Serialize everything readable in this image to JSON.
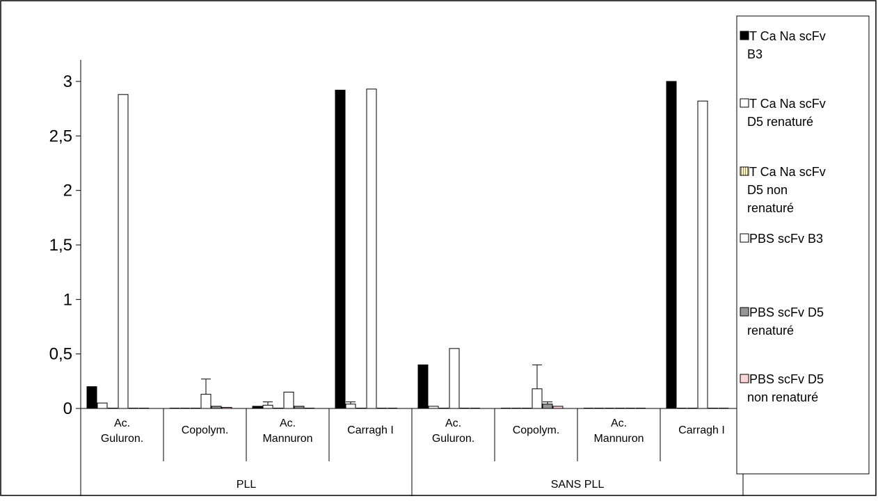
{
  "chart_data": {
    "type": "bar",
    "title": "",
    "xlabel": "",
    "ylabel": "",
    "ylim": [
      0,
      3
    ],
    "yticks": [
      "0",
      "0,5",
      "1",
      "1,5",
      "2",
      "2,5",
      "3"
    ],
    "ytick_values": [
      0,
      0.5,
      1,
      1.5,
      2,
      2.5,
      3
    ],
    "grid": false,
    "legend_position": "right",
    "groups": [
      {
        "label": "PLL",
        "categories": [
          [
            "Ac.",
            "Guluron."
          ],
          [
            "Copolym."
          ],
          [
            "Ac.",
            "Mannuron"
          ],
          [
            "Carragh I"
          ]
        ]
      },
      {
        "label": "SANS PLL",
        "categories": [
          [
            "Ac.",
            "Guluron."
          ],
          [
            "Copolym."
          ],
          [
            "Ac.",
            "Mannuron"
          ],
          [
            "Carragh I"
          ]
        ]
      }
    ],
    "series": [
      {
        "name": [
          "T Ca Na scFv",
          "B3"
        ],
        "fill": "#000000",
        "pattern": "solid",
        "values": [
          0.2,
          0,
          0.02,
          2.92,
          0.4,
          0,
          0,
          3.0
        ],
        "errors": [
          0,
          0,
          0,
          0,
          0,
          0,
          0,
          0
        ]
      },
      {
        "name": [
          "T Ca Na scFv",
          "D5 renaturé"
        ],
        "fill": "#ffffff",
        "pattern": "solid",
        "values": [
          0.05,
          0,
          0.03,
          0.04,
          0.02,
          0,
          0,
          0
        ],
        "errors": [
          0,
          0,
          0.03,
          0.02,
          0,
          0,
          0,
          0
        ]
      },
      {
        "name": [
          "T Ca Na scFv",
          "D5 non",
          "renaturé"
        ],
        "fill": "#fff6c8",
        "pattern": "vstripe",
        "values": [
          0,
          0,
          0,
          0,
          0,
          0,
          0,
          0
        ],
        "errors": [
          0,
          0,
          0,
          0,
          0,
          0,
          0,
          0
        ]
      },
      {
        "name": [
          "PBS scFv B3"
        ],
        "fill": "#ffffff",
        "pattern": "solid",
        "values": [
          2.88,
          0.13,
          0.15,
          2.93,
          0.55,
          0.18,
          0,
          2.82
        ],
        "errors": [
          0,
          0.14,
          0,
          0,
          0,
          0.22,
          0,
          0
        ]
      },
      {
        "name": [
          "PBS scFv D5",
          "renaturé"
        ],
        "fill": "#969696",
        "pattern": "solid",
        "values": [
          0,
          0.02,
          0.02,
          0,
          0,
          0.04,
          0,
          0
        ],
        "errors": [
          0,
          0,
          0,
          0,
          0,
          0.02,
          0,
          0
        ]
      },
      {
        "name": [
          "PBS scFv D5",
          "non renaturé"
        ],
        "fill": "#ffd7d7",
        "pattern": "solid",
        "values": [
          0,
          0.01,
          0,
          0,
          0,
          0.02,
          0,
          0
        ],
        "errors": [
          0,
          0,
          0,
          0,
          0,
          0,
          0,
          0
        ]
      }
    ]
  }
}
